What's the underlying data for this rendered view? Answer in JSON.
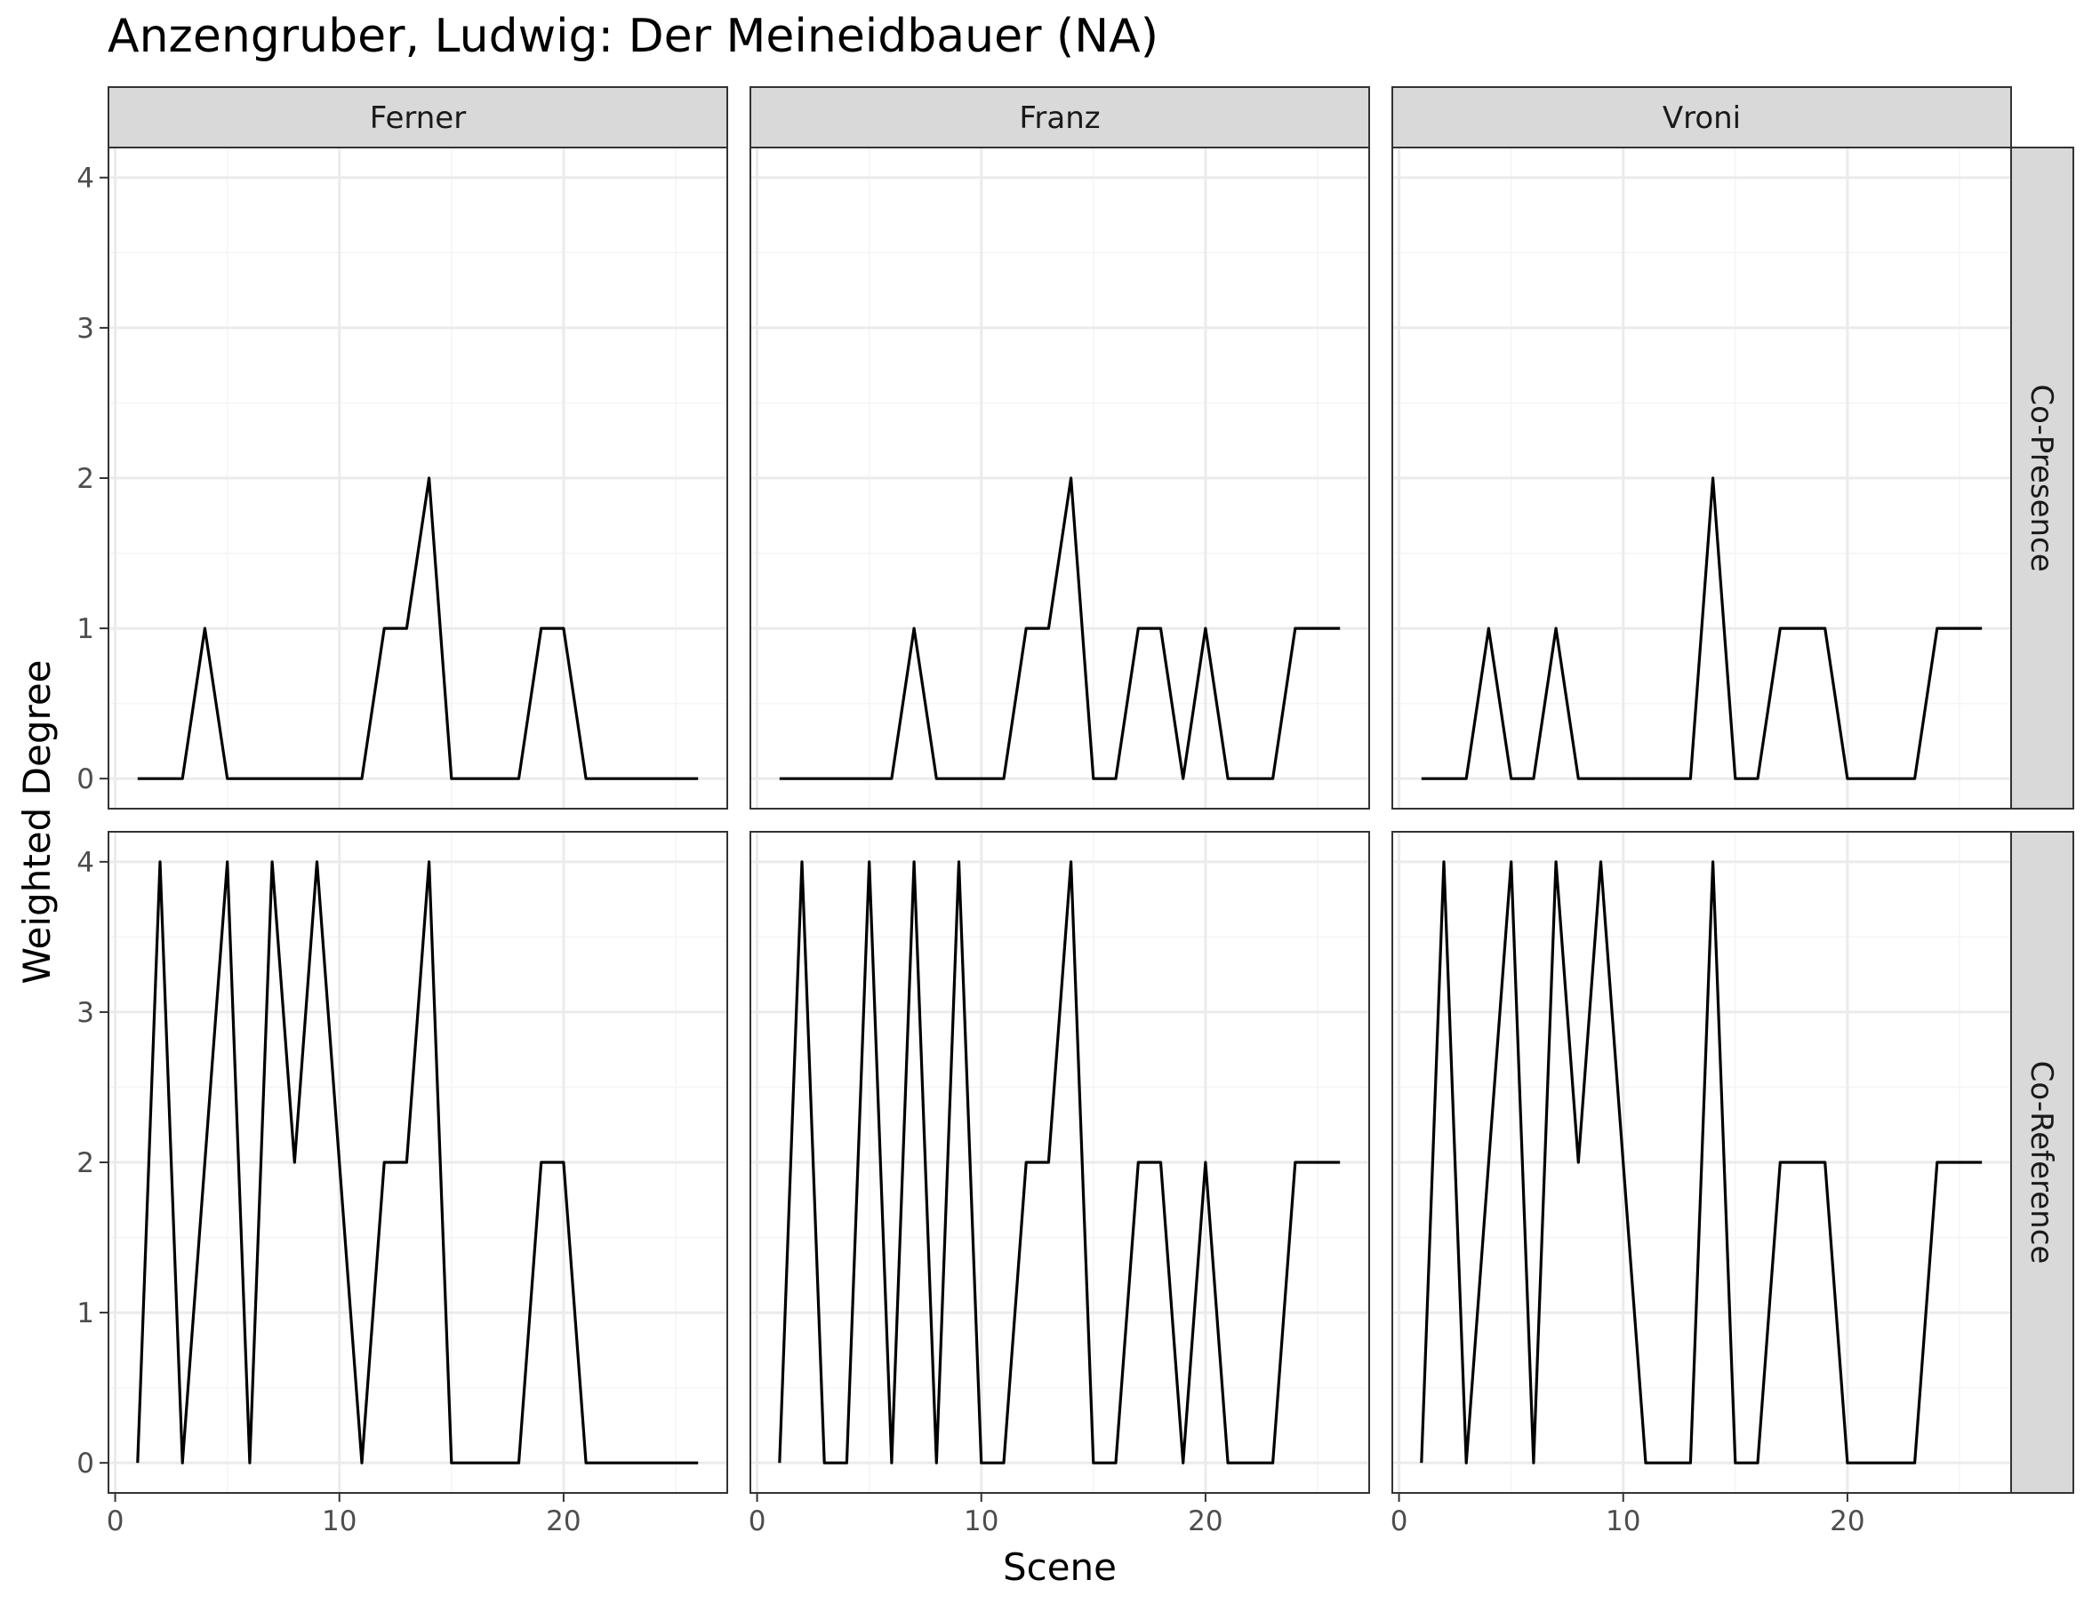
{
  "chart_data": {
    "type": "line",
    "title": "Anzengruber, Ludwig: Der Meineidbauer (NA)",
    "xlabel": "Scene",
    "ylabel": "Weighted Degree",
    "xlim": [
      -0.3,
      27.3
    ],
    "ylim": [
      -0.2,
      4.2
    ],
    "x_ticks": [
      0,
      10,
      20
    ],
    "x_tick_labels": [
      "0",
      "10",
      "20"
    ],
    "y_ticks": [
      0,
      1,
      2,
      3,
      4
    ],
    "y_tick_labels": [
      "0",
      "1",
      "2",
      "3",
      "4"
    ],
    "grid": true,
    "facet_columns": [
      "Ferner",
      "Franz",
      "Vroni"
    ],
    "facet_rows": [
      "Co-Presence",
      "Co-Reference"
    ],
    "x": [
      1,
      2,
      3,
      4,
      5,
      6,
      7,
      8,
      9,
      10,
      11,
      12,
      13,
      14,
      15,
      16,
      17,
      18,
      19,
      20,
      21,
      22,
      23,
      24,
      25,
      26
    ],
    "series": [
      {
        "column": "Ferner",
        "row": "Co-Presence",
        "values": [
          0,
          0,
          0,
          1,
          0,
          0,
          0,
          0,
          0,
          0,
          0,
          1,
          1,
          2,
          0,
          0,
          0,
          0,
          1,
          1,
          0,
          0,
          0,
          0,
          0,
          0
        ]
      },
      {
        "column": "Franz",
        "row": "Co-Presence",
        "values": [
          0,
          0,
          0,
          0,
          0,
          0,
          1,
          0,
          0,
          0,
          0,
          1,
          1,
          2,
          0,
          0,
          1,
          1,
          0,
          1,
          0,
          0,
          0,
          1,
          1,
          1
        ]
      },
      {
        "column": "Vroni",
        "row": "Co-Presence",
        "values": [
          0,
          0,
          0,
          1,
          0,
          0,
          1,
          0,
          0,
          0,
          0,
          0,
          0,
          2,
          0,
          0,
          1,
          1,
          1,
          0,
          0,
          0,
          0,
          1,
          1,
          1
        ]
      },
      {
        "column": "Ferner",
        "row": "Co-Reference",
        "values": [
          0,
          4,
          0,
          2,
          4,
          0,
          4,
          2,
          4,
          2,
          0,
          2,
          2,
          4,
          0,
          0,
          0,
          0,
          2,
          2,
          0,
          0,
          0,
          0,
          0,
          0
        ]
      },
      {
        "column": "Franz",
        "row": "Co-Reference",
        "values": [
          0,
          4,
          0,
          0,
          4,
          0,
          4,
          0,
          4,
          0,
          0,
          2,
          2,
          4,
          0,
          0,
          2,
          2,
          0,
          2,
          0,
          0,
          0,
          2,
          2,
          2
        ]
      },
      {
        "column": "Vroni",
        "row": "Co-Reference",
        "values": [
          0,
          4,
          0,
          2,
          4,
          0,
          4,
          2,
          4,
          2,
          0,
          0,
          0,
          4,
          0,
          0,
          2,
          2,
          2,
          0,
          0,
          0,
          0,
          2,
          2,
          2
        ]
      }
    ],
    "colors": {
      "line": "#000000",
      "panel_border": "#333333",
      "strip_fill": "#d9d9d9",
      "grid_major": "#ebebeb",
      "grid_minor": "#f5f5f5",
      "tick_text": "#4d4d4d"
    }
  }
}
